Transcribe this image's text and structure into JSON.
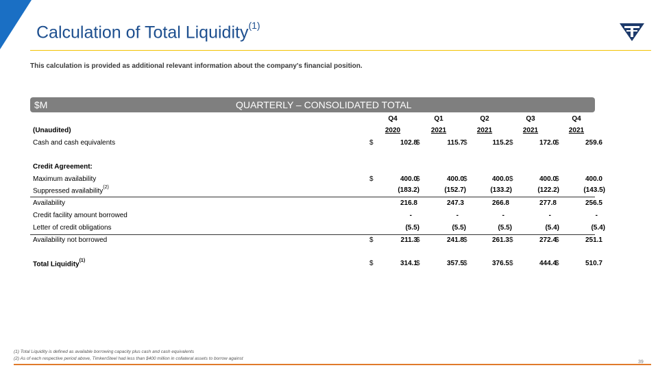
{
  "header": {
    "title": "Calculation of Total Liquidity",
    "title_sup": "(1)",
    "subtitle": "This calculation is provided as additional relevant information about the company's financial position."
  },
  "table": {
    "unit": "$M",
    "group_title": "QUARTERLY – CONSOLIDATED TOTAL",
    "unaudited_label": "(Unaudited)",
    "columns": [
      {
        "q": "Q4",
        "y": "2020"
      },
      {
        "q": "Q1",
        "y": "2021"
      },
      {
        "q": "Q2",
        "y": "2021"
      },
      {
        "q": "Q3",
        "y": "2021"
      },
      {
        "q": "Q4",
        "y": "2021"
      }
    ],
    "rows": {
      "cash": {
        "label": "Cash and cash equivalents",
        "values": [
          "102.8",
          "115.7",
          "115.2",
          "172.0",
          "259.6"
        ]
      },
      "credit_agreement": {
        "label": "Credit Agreement:"
      },
      "max_avail": {
        "label": "Maximum availability",
        "values": [
          "400.0",
          "400.0",
          "400.0",
          "400.0",
          "400.0"
        ]
      },
      "suppressed": {
        "label": "Suppressed availability",
        "sup": "(2)",
        "values": [
          "(183.2)",
          "(152.7)",
          "(133.2)",
          "(122.2)",
          "(143.5)"
        ]
      },
      "availability": {
        "label": "Availability",
        "values": [
          "216.8",
          "247.3",
          "266.8",
          "277.8",
          "256.5"
        ]
      },
      "borrowed": {
        "label": "Credit facility amount borrowed",
        "values": [
          "-",
          "-",
          "-",
          "-",
          "-"
        ]
      },
      "loc": {
        "label": "Letter of credit obligations",
        "values": [
          "(5.5)",
          "(5.5)",
          "(5.5)",
          "(5.4)",
          "(5.4)"
        ]
      },
      "not_borrowed": {
        "label": "Availability not borrowed",
        "values": [
          "211.3",
          "241.8",
          "261.3",
          "272.4",
          "251.1"
        ]
      },
      "total": {
        "label": "Total Liquidity",
        "sup": "(1)",
        "values": [
          "314.1",
          "357.5",
          "376.5",
          "444.4",
          "510.7"
        ]
      }
    },
    "currency": "$"
  },
  "footnotes": [
    "(1)  Total Liquidity is defined as available borrowing capacity plus cash and cash equivalents",
    "(2)  As of each respective period above, TimkenSteel had less than $400 million in collateral assets to borrow against"
  ],
  "page_number": "39",
  "colors": {
    "accent_blue": "#1a6fc4",
    "title_blue": "#1d4f8f",
    "gold_rule": "#f2c200",
    "orange_rule": "#e07a2a",
    "header_gray": "#7f7f7f"
  }
}
